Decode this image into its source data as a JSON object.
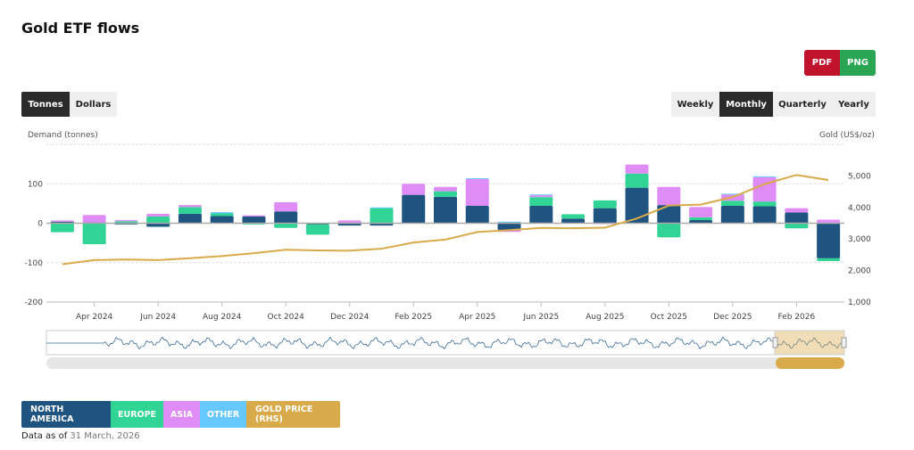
{
  "title": "Gold ETF flows",
  "export": {
    "pdf": "PDF",
    "png": "PNG",
    "pdf_color": "#c0142c",
    "png_color": "#29a553"
  },
  "units": [
    {
      "label": "Tonnes",
      "active": true
    },
    {
      "label": "Dollars",
      "active": false
    }
  ],
  "periods": [
    {
      "label": "Weekly",
      "active": false
    },
    {
      "label": "Monthly",
      "active": true
    },
    {
      "label": "Quarterly",
      "active": false
    },
    {
      "label": "Yearly",
      "active": false
    }
  ],
  "legend": [
    {
      "label": "NORTH AMERICA",
      "color": "#1f5380"
    },
    {
      "label": "EUROPE",
      "color": "#30d495"
    },
    {
      "label": "ASIA",
      "color": "#df8cf7"
    },
    {
      "label": "OTHER",
      "color": "#66c8ff"
    },
    {
      "label": "GOLD PRICE (RHS)",
      "color": "#d9aa4a"
    }
  ],
  "as_of": {
    "label": "Data as of",
    "value": "31 March, 2026"
  },
  "chart_data": {
    "type": "bar",
    "stacked": true,
    "ylabel": "Demand (tonnes)",
    "y2label": "Gold (US$/oz)",
    "ylim": [
      -200,
      200
    ],
    "yticks": [
      -200,
      -100,
      0,
      100
    ],
    "y2lim": [
      1000,
      6000
    ],
    "y2ticks": [
      "1,000",
      "2,000",
      "3,000",
      "4,000",
      "5,000"
    ],
    "y2tick_values": [
      1000,
      2000,
      3000,
      4000,
      5000
    ],
    "grid": true,
    "categories": [
      "Mar 2024",
      "Apr 2024",
      "May 2024",
      "Jun 2024",
      "Jul 2024",
      "Aug 2024",
      "Sep 2024",
      "Oct 2024",
      "Nov 2024",
      "Dec 2024",
      "Jan 2025",
      "Feb 2025",
      "Mar 2025",
      "Apr 2025",
      "May 2025",
      "Jun 2025",
      "Jul 2025",
      "Aug 2025",
      "Sep 2025",
      "Oct 2025",
      "Nov 2025",
      "Dec 2025",
      "Jan 2026",
      "Feb 2026",
      "Mar 2026"
    ],
    "xtick_labels": [
      "Apr 2024",
      "Jun 2024",
      "Aug 2024",
      "Oct 2024",
      "Dec 2024",
      "Feb 2025",
      "Apr 2025",
      "Jun 2025",
      "Aug 2025",
      "Oct 2025",
      "Dec 2025",
      "Feb 2026"
    ],
    "series": [
      {
        "name": "NORTH AMERICA",
        "values": [
          4,
          2,
          -3,
          -9,
          24,
          18,
          17,
          30,
          -3,
          -6,
          -6,
          72,
          67,
          44,
          -17,
          44,
          12,
          38,
          90,
          46,
          8,
          44,
          43,
          27,
          -89
        ]
      },
      {
        "name": "EUROPE",
        "values": [
          -23,
          -53,
          5,
          17,
          17,
          7,
          -3,
          -12,
          -26,
          0,
          38,
          0,
          14,
          0,
          2,
          22,
          11,
          20,
          36,
          -36,
          7,
          13,
          12,
          -13,
          -7
        ]
      },
      {
        "name": "ASIA",
        "values": [
          3,
          19,
          3,
          7,
          5,
          0,
          3,
          23,
          0,
          7,
          0,
          28,
          11,
          68,
          -5,
          5,
          0,
          -2,
          23,
          46,
          26,
          16,
          62,
          11,
          9
        ]
      },
      {
        "name": "OTHER",
        "values": [
          0,
          0,
          0,
          0,
          0,
          3,
          0,
          0,
          0,
          0,
          2,
          0,
          0,
          2,
          2,
          2,
          0,
          0,
          0,
          0,
          0,
          2,
          2,
          0,
          0
        ]
      },
      {
        "name": "GOLD PRICE (RHS)",
        "axis": "right",
        "type": "line",
        "values": [
          2200,
          2330,
          2350,
          2330,
          2390,
          2460,
          2550,
          2660,
          2640,
          2630,
          2690,
          2890,
          2980,
          3220,
          3280,
          3350,
          3340,
          3360,
          3650,
          4060,
          4090,
          4330,
          4740,
          5030,
          4870
        ]
      }
    ]
  }
}
